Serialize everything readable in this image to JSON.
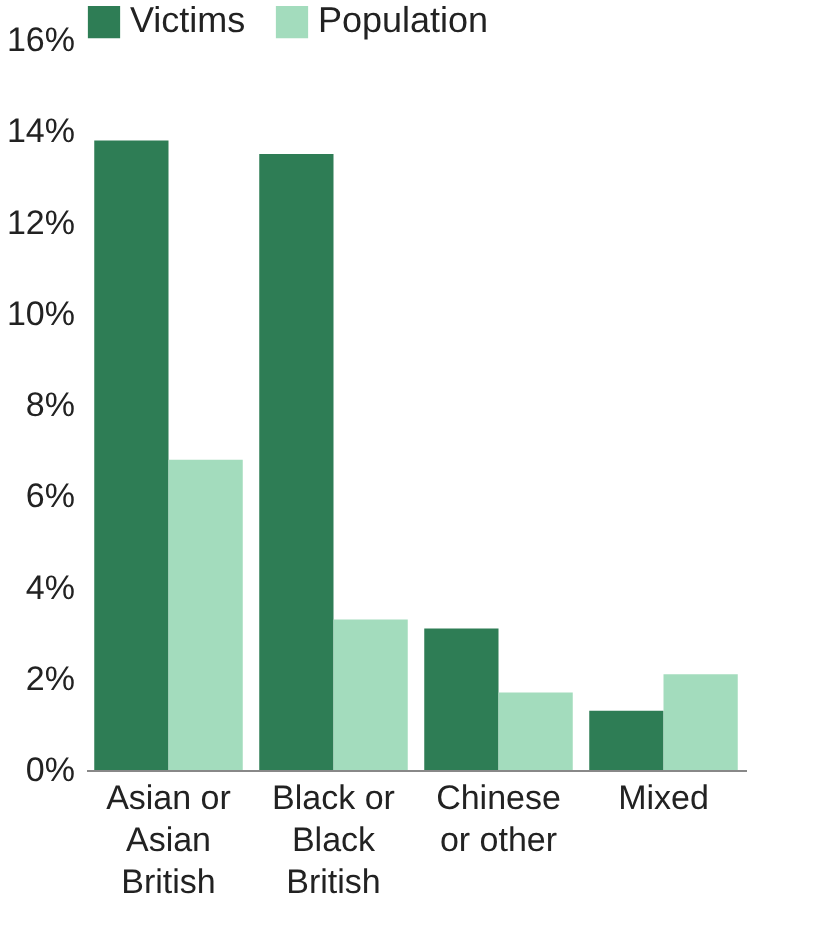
{
  "chart_data": {
    "type": "bar",
    "categories": [
      "Asian or Asian British",
      "Black or Black British",
      "Chinese or other",
      "Mixed"
    ],
    "series": [
      {
        "name": "Victims",
        "color": "#2e7d55",
        "values": [
          13.8,
          13.5,
          3.1,
          1.3
        ]
      },
      {
        "name": "Population",
        "color": "#a3dcbd",
        "values": [
          6.8,
          3.3,
          1.7,
          2.1
        ]
      }
    ],
    "ylim": [
      0,
      16
    ],
    "yticks": [
      {
        "value": 0,
        "label": "0%"
      },
      {
        "value": 2,
        "label": "2%"
      },
      {
        "value": 4,
        "label": "4%"
      },
      {
        "value": 6,
        "label": "6%"
      },
      {
        "value": 8,
        "label": "8%"
      },
      {
        "value": 10,
        "label": "10%"
      },
      {
        "value": 12,
        "label": "12%"
      },
      {
        "value": 14,
        "label": "14%"
      },
      {
        "value": 16,
        "label": "16%"
      }
    ],
    "grid": false,
    "legend": "top"
  }
}
